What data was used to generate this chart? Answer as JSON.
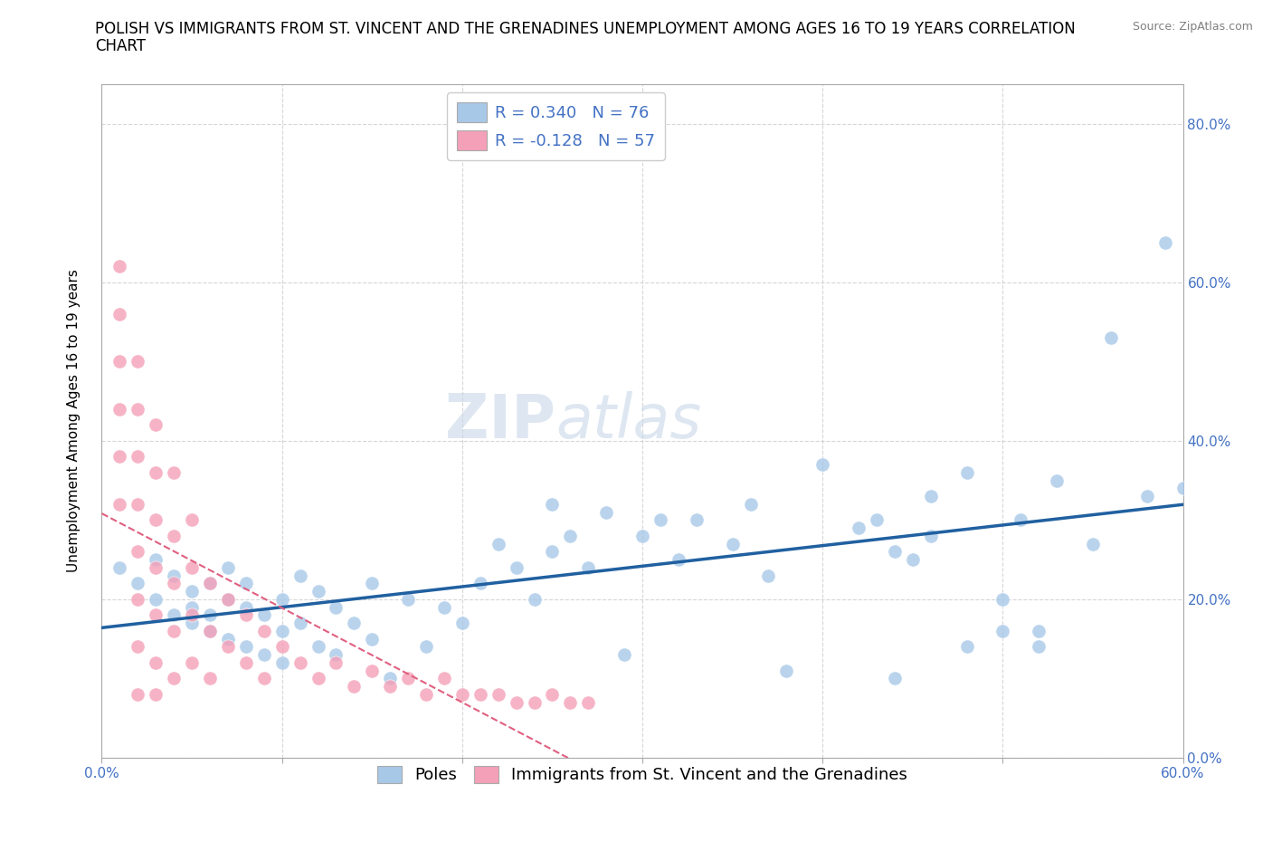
{
  "title_line1": "POLISH VS IMMIGRANTS FROM ST. VINCENT AND THE GRENADINES UNEMPLOYMENT AMONG AGES 16 TO 19 YEARS CORRELATION",
  "title_line2": "CHART",
  "source_text": "Source: ZipAtlas.com",
  "ylabel": "Unemployment Among Ages 16 to 19 years",
  "xmin": 0.0,
  "xmax": 0.6,
  "ymin": 0.0,
  "ymax": 0.85,
  "xtick_labels": [
    "0.0%",
    "",
    "",
    "",
    "",
    "",
    "60.0%"
  ],
  "xtick_values": [
    0.0,
    0.1,
    0.2,
    0.3,
    0.4,
    0.5,
    0.6
  ],
  "ytick_labels": [
    "0.0%",
    "20.0%",
    "40.0%",
    "60.0%",
    "80.0%"
  ],
  "ytick_values": [
    0.0,
    0.2,
    0.4,
    0.6,
    0.8
  ],
  "blue_R": 0.34,
  "blue_N": 76,
  "pink_R": -0.128,
  "pink_N": 57,
  "blue_color": "#a8c8e8",
  "pink_color": "#f4a0b8",
  "blue_line_color": "#2060a0",
  "pink_line_color": "#e06080",
  "legend_text_color": "#4472c4",
  "watermark_zip": "ZIP",
  "watermark_atlas": "atlas",
  "poles_scatter_x": [
    0.01,
    0.02,
    0.03,
    0.03,
    0.04,
    0.04,
    0.05,
    0.05,
    0.05,
    0.06,
    0.06,
    0.06,
    0.07,
    0.07,
    0.07,
    0.08,
    0.08,
    0.08,
    0.09,
    0.09,
    0.1,
    0.1,
    0.1,
    0.11,
    0.11,
    0.12,
    0.12,
    0.13,
    0.13,
    0.14,
    0.15,
    0.15,
    0.16,
    0.17,
    0.18,
    0.19,
    0.2,
    0.21,
    0.22,
    0.23,
    0.24,
    0.25,
    0.25,
    0.26,
    0.27,
    0.28,
    0.29,
    0.3,
    0.31,
    0.32,
    0.33,
    0.35,
    0.36,
    0.37,
    0.38,
    0.4,
    0.42,
    0.43,
    0.44,
    0.45,
    0.46,
    0.48,
    0.5,
    0.51,
    0.52,
    0.53,
    0.55,
    0.56,
    0.58,
    0.59,
    0.6,
    0.44,
    0.5,
    0.52,
    0.48,
    0.46
  ],
  "poles_scatter_y": [
    0.24,
    0.22,
    0.2,
    0.25,
    0.18,
    0.23,
    0.17,
    0.21,
    0.19,
    0.16,
    0.22,
    0.18,
    0.15,
    0.2,
    0.24,
    0.14,
    0.19,
    0.22,
    0.13,
    0.18,
    0.12,
    0.2,
    0.16,
    0.23,
    0.17,
    0.14,
    0.21,
    0.13,
    0.19,
    0.17,
    0.15,
    0.22,
    0.1,
    0.2,
    0.14,
    0.19,
    0.17,
    0.22,
    0.27,
    0.24,
    0.2,
    0.26,
    0.32,
    0.28,
    0.24,
    0.31,
    0.13,
    0.28,
    0.3,
    0.25,
    0.3,
    0.27,
    0.32,
    0.23,
    0.11,
    0.37,
    0.29,
    0.3,
    0.1,
    0.25,
    0.33,
    0.36,
    0.16,
    0.3,
    0.14,
    0.35,
    0.27,
    0.53,
    0.33,
    0.65,
    0.34,
    0.26,
    0.2,
    0.16,
    0.14,
    0.28
  ],
  "svg_scatter_x": [
    0.01,
    0.01,
    0.01,
    0.01,
    0.01,
    0.01,
    0.02,
    0.02,
    0.02,
    0.02,
    0.02,
    0.02,
    0.02,
    0.02,
    0.03,
    0.03,
    0.03,
    0.03,
    0.03,
    0.03,
    0.03,
    0.04,
    0.04,
    0.04,
    0.04,
    0.04,
    0.05,
    0.05,
    0.05,
    0.05,
    0.06,
    0.06,
    0.06,
    0.07,
    0.07,
    0.08,
    0.08,
    0.09,
    0.09,
    0.1,
    0.11,
    0.12,
    0.13,
    0.14,
    0.15,
    0.16,
    0.17,
    0.18,
    0.19,
    0.2,
    0.21,
    0.22,
    0.23,
    0.24,
    0.25,
    0.26,
    0.27
  ],
  "svg_scatter_y": [
    0.62,
    0.56,
    0.5,
    0.44,
    0.38,
    0.32,
    0.5,
    0.44,
    0.38,
    0.32,
    0.26,
    0.2,
    0.14,
    0.08,
    0.42,
    0.36,
    0.3,
    0.24,
    0.18,
    0.12,
    0.08,
    0.36,
    0.28,
    0.22,
    0.16,
    0.1,
    0.3,
    0.24,
    0.18,
    0.12,
    0.22,
    0.16,
    0.1,
    0.2,
    0.14,
    0.18,
    0.12,
    0.16,
    0.1,
    0.14,
    0.12,
    0.1,
    0.12,
    0.09,
    0.11,
    0.09,
    0.1,
    0.08,
    0.1,
    0.08,
    0.08,
    0.08,
    0.07,
    0.07,
    0.08,
    0.07,
    0.07
  ],
  "background_color": "#ffffff",
  "grid_color": "#cccccc",
  "title_fontsize": 12,
  "axis_label_fontsize": 11,
  "tick_fontsize": 11,
  "legend_fontsize": 13,
  "marker_size": 120
}
